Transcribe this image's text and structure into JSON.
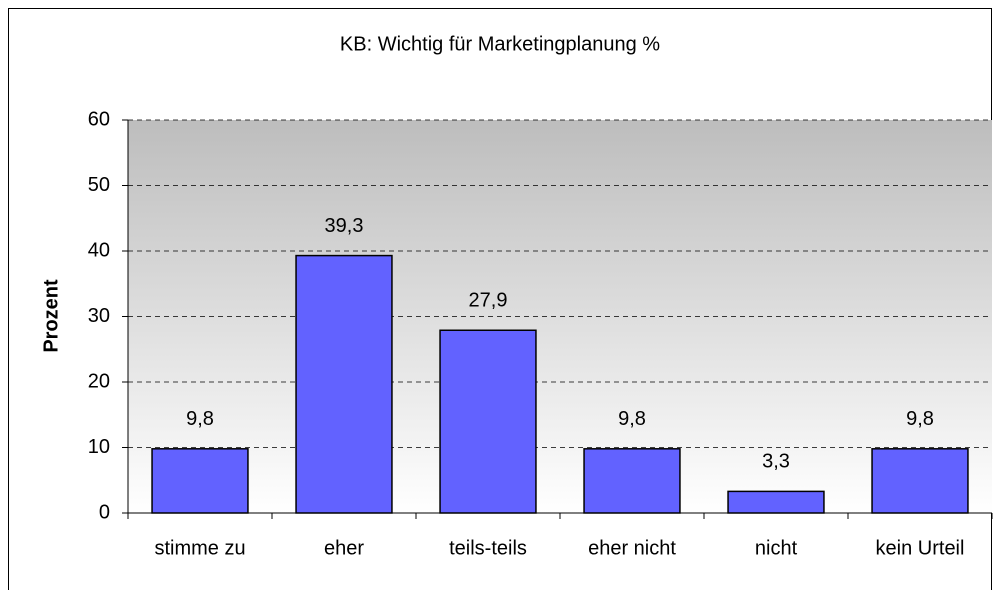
{
  "chart_data": {
    "type": "bar",
    "title": "KB: Wichtig für Marketingplanung %",
    "y_label": "Prozent",
    "categories": [
      "stimme zu",
      "eher",
      "teils-teils",
      "eher nicht",
      "nicht",
      "kein Urteil"
    ],
    "values": [
      9.8,
      39.3,
      27.9,
      9.8,
      3.3,
      9.8
    ],
    "value_labels": [
      "9,8",
      "39,3",
      "27,9",
      "9,8",
      "3,3",
      "9,8"
    ],
    "color": "#6262ff",
    "ylim": [
      0,
      60
    ],
    "yticks": [
      0,
      10,
      20,
      30,
      40,
      50,
      60
    ],
    "grid": true
  }
}
